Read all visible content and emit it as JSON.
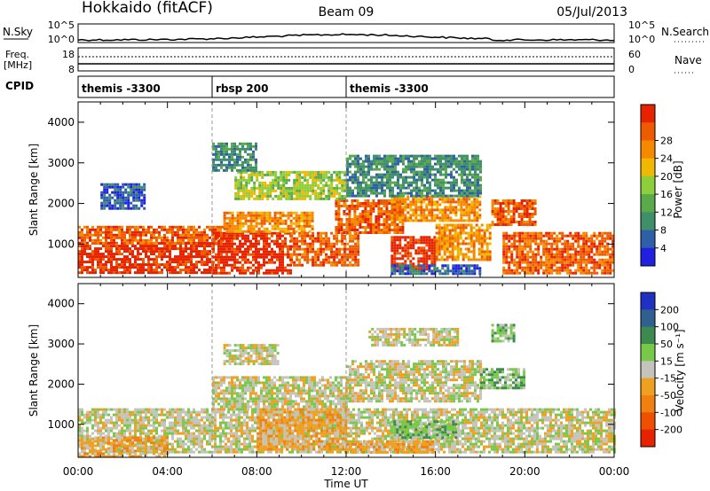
{
  "header": {
    "station": "Hokkaido (fitACF)",
    "beam": "Beam 09",
    "date": "05/Jul/2013"
  },
  "noise_panel": {
    "left_label": "N.Sky",
    "left_ticks": [
      "10^5",
      "10^0"
    ],
    "right_ticks": [
      "10^5",
      "10^0"
    ],
    "right_label": "N.Search"
  },
  "freq_panel": {
    "left_label_top": "Freq.",
    "left_label_bottom": "[MHz]",
    "left_ticks": [
      "18",
      "8"
    ],
    "right_ticks": [
      "60",
      "0"
    ],
    "right_label": "Nave"
  },
  "cpid_panel": {
    "label": "CPID",
    "segments": [
      {
        "label": "themis -3300",
        "start_hour": 0,
        "end_hour": 6
      },
      {
        "label": "rbsp 200",
        "start_hour": 6,
        "end_hour": 12
      },
      {
        "label": "themis -3300",
        "start_hour": 12,
        "end_hour": 24
      }
    ]
  },
  "axes": {
    "xlabel": "Time UT",
    "x_ticks": [
      "00:00",
      "04:00",
      "08:00",
      "12:00",
      "16:00",
      "20:00",
      "00:00"
    ],
    "y_ticks": [
      "1000",
      "2000",
      "3000",
      "4000"
    ],
    "ylabel": "Slant Range [km]"
  },
  "chart_data": [
    {
      "type": "heatmap",
      "name": "power",
      "xlabel": "Time UT",
      "ylabel": "Slant Range [km]",
      "xlim": [
        0,
        24
      ],
      "ylim": [
        180,
        4500
      ],
      "colorbar": {
        "label": "Power [dB]",
        "ticks": [
          "4",
          "8",
          "12",
          "16",
          "20",
          "24",
          "28"
        ],
        "colors": [
          "#2020e0",
          "#2f5fa6",
          "#3f8f6a",
          "#5aa94a",
          "#8dcf3a",
          "#f0b800",
          "#f58a00",
          "#ee5a00",
          "#e62200"
        ]
      },
      "blobs": [
        {
          "t0": 0,
          "t1": 6.0,
          "r0": 280,
          "r1": 1050,
          "c": 8
        },
        {
          "t0": 0,
          "t1": 6.5,
          "r0": 1050,
          "r1": 1450,
          "c": 7
        },
        {
          "t0": 6,
          "t1": 9.5,
          "r0": 300,
          "r1": 1300,
          "c": 8
        },
        {
          "t0": 6.5,
          "t1": 10.5,
          "r0": 1300,
          "r1": 1800,
          "c": 6
        },
        {
          "t0": 9.5,
          "t1": 12.5,
          "r0": 500,
          "r1": 1300,
          "c": 7
        },
        {
          "t0": 11.5,
          "t1": 14.5,
          "r0": 1300,
          "r1": 2100,
          "c": 7
        },
        {
          "t0": 14,
          "t1": 18,
          "r0": 1600,
          "r1": 2200,
          "c": 6
        },
        {
          "t0": 14,
          "t1": 16,
          "r0": 400,
          "r1": 1200,
          "c": 8
        },
        {
          "t0": 16,
          "t1": 18.5,
          "r0": 600,
          "r1": 1500,
          "c": 6
        },
        {
          "t0": 18.5,
          "t1": 20.5,
          "r0": 1500,
          "r1": 2100,
          "c": 7
        },
        {
          "t0": 19,
          "t1": 24,
          "r0": 300,
          "r1": 1300,
          "c": 7
        },
        {
          "t0": 7,
          "t1": 12,
          "r0": 2100,
          "r1": 2800,
          "c": 4
        },
        {
          "t0": 12,
          "t1": 18,
          "r0": 2200,
          "r1": 3200,
          "c": 2
        },
        {
          "t0": 1,
          "t1": 3,
          "r0": 1900,
          "r1": 2500,
          "c": 1
        },
        {
          "t0": 6,
          "t1": 8,
          "r0": 2800,
          "r1": 3500,
          "c": 2
        },
        {
          "t0": 14,
          "t1": 18,
          "r0": 300,
          "r1": 500,
          "c": 1
        }
      ]
    },
    {
      "type": "heatmap",
      "name": "velocity",
      "xlabel": "Time UT",
      "ylabel": "Slant Range [km]",
      "xlim": [
        0,
        24
      ],
      "ylim": [
        180,
        4500
      ],
      "colorbar": {
        "label": "Velocity [m s⁻¹]",
        "ticks": [
          "200",
          "100",
          "50",
          "15",
          "-15",
          "-50",
          "-100",
          "-200"
        ],
        "colors": [
          "#2030c0",
          "#306090",
          "#3c8a50",
          "#78c84a",
          "#c4c4bc",
          "#f0a020",
          "#f08010",
          "#ee5000",
          "#e62200"
        ]
      },
      "blobs": [
        {
          "t0": 0,
          "t1": 24,
          "r0": 300,
          "r1": 1400,
          "c": 4
        },
        {
          "t0": 6,
          "t1": 12,
          "r0": 1400,
          "r1": 2200,
          "c": 4
        },
        {
          "t0": 12,
          "t1": 18,
          "r0": 1600,
          "r1": 2600,
          "c": 4
        },
        {
          "t0": 6.5,
          "t1": 9,
          "r0": 2500,
          "r1": 3000,
          "c": 4
        },
        {
          "t0": 13,
          "t1": 17,
          "r0": 3000,
          "r1": 3400,
          "c": 4
        },
        {
          "t0": 8,
          "t1": 12,
          "r0": 400,
          "r1": 1400,
          "c": 5
        },
        {
          "t0": 0,
          "t1": 4,
          "r0": 200,
          "r1": 700,
          "c": 5
        },
        {
          "t0": 14,
          "t1": 17,
          "r0": 700,
          "r1": 1100,
          "c": 3
        },
        {
          "t0": 18,
          "t1": 20,
          "r0": 1900,
          "r1": 2400,
          "c": 3
        },
        {
          "t0": 18.5,
          "t1": 19.5,
          "r0": 3100,
          "r1": 3500,
          "c": 3
        },
        {
          "t0": 12,
          "t1": 16,
          "r0": 300,
          "r1": 600,
          "c": 5
        }
      ]
    }
  ]
}
